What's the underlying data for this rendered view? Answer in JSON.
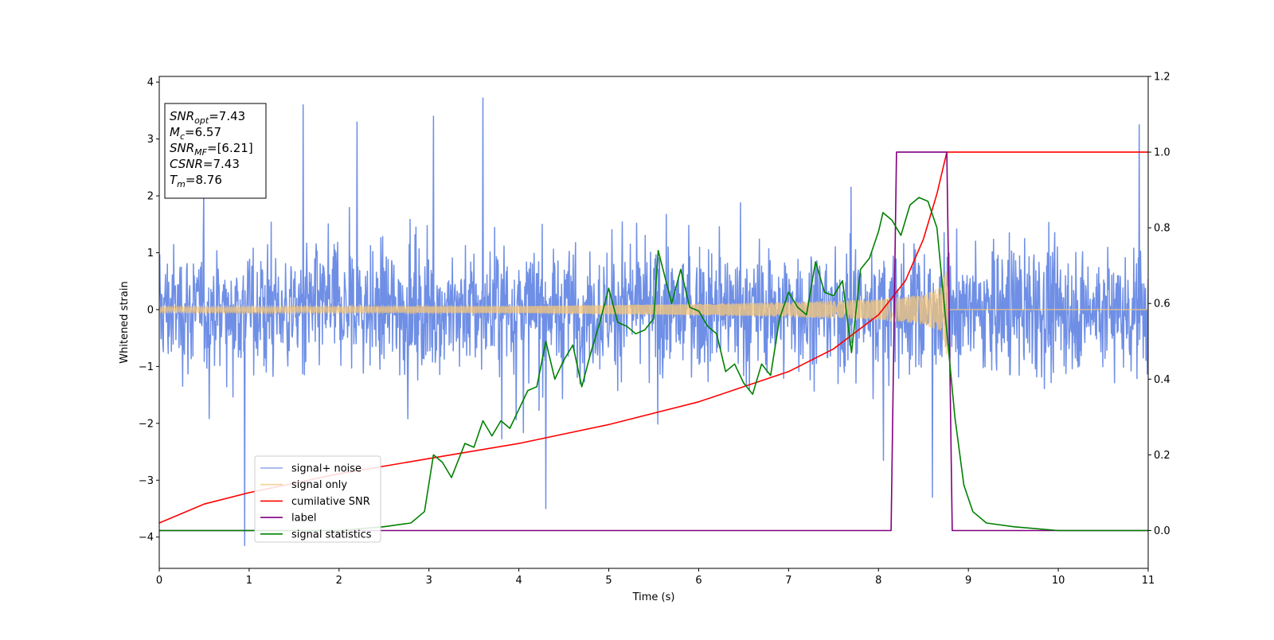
{
  "chart_data": {
    "type": "line",
    "xlabel": "Time (s)",
    "ylabel": "Whitened strain",
    "xlim": [
      0,
      11
    ],
    "ylim_left": [
      -4.55,
      4.1
    ],
    "ylim_right": [
      -0.1,
      1.2
    ],
    "x_ticks": [
      "0",
      "1",
      "2",
      "3",
      "4",
      "5",
      "6",
      "7",
      "8",
      "9",
      "10",
      "11"
    ],
    "y_ticks_left": [
      "−4",
      "−3",
      "−2",
      "−1",
      "0",
      "1",
      "2",
      "3",
      "4"
    ],
    "y_ticks_right": [
      "0.0",
      "0.2",
      "0.4",
      "0.6",
      "0.8",
      "1.0",
      "1.2"
    ],
    "info_box": [
      {
        "var": "SNR",
        "sub": "opt",
        "value": "=7.43"
      },
      {
        "var": "M",
        "sub": "c",
        "value": "=6.57"
      },
      {
        "var": "SNR",
        "sub": "MF",
        "value": "=[6.21]"
      },
      {
        "var": "CSNR",
        "sub": "",
        "value": "=7.43"
      },
      {
        "var": "T",
        "sub": "m",
        "value": "=8.76"
      }
    ],
    "legend_position": "lower-left",
    "series": [
      {
        "name": "signal+ noise",
        "color": "#6f8fe6",
        "axis": "left",
        "kind": "noise",
        "noise_envelope": {
          "typical_range": [
            -1.3,
            1.3
          ],
          "max_peak": 3.72,
          "min_peak": -4.15,
          "x_range": [
            0,
            11
          ]
        },
        "spikes": [
          [
            0.95,
            -4.15
          ],
          [
            1.6,
            3.6
          ],
          [
            3.6,
            3.72
          ],
          [
            4.3,
            -3.5
          ],
          [
            8.6,
            -3.3
          ],
          [
            10.9,
            3.25
          ],
          [
            3.05,
            3.4
          ],
          [
            2.2,
            3.3
          ]
        ]
      },
      {
        "name": "signal only",
        "color": "#f5c779",
        "axis": "left",
        "kind": "chirp",
        "envelope": [
          [
            0,
            0.05
          ],
          [
            4,
            0.06
          ],
          [
            6,
            0.1
          ],
          [
            7,
            0.13
          ],
          [
            8,
            0.18
          ],
          [
            8.5,
            0.26
          ],
          [
            8.7,
            0.4
          ],
          [
            8.76,
            0.8
          ],
          [
            8.78,
            0.0
          ],
          [
            11,
            0.0
          ]
        ]
      },
      {
        "name": "cumilative SNR",
        "color": "#ff0000",
        "axis": "right",
        "points": [
          [
            0,
            0.02
          ],
          [
            0.5,
            0.07
          ],
          [
            1,
            0.1
          ],
          [
            2,
            0.15
          ],
          [
            3,
            0.19
          ],
          [
            4,
            0.23
          ],
          [
            5,
            0.28
          ],
          [
            6,
            0.34
          ],
          [
            7,
            0.42
          ],
          [
            7.5,
            0.48
          ],
          [
            8,
            0.57
          ],
          [
            8.3,
            0.66
          ],
          [
            8.5,
            0.77
          ],
          [
            8.65,
            0.89
          ],
          [
            8.76,
            1.0
          ],
          [
            11,
            1.0
          ]
        ]
      },
      {
        "name": "label",
        "color": "#800080",
        "axis": "right",
        "points": [
          [
            0,
            0.0
          ],
          [
            8.14,
            0.0
          ],
          [
            8.2,
            1.0
          ],
          [
            8.76,
            1.0
          ],
          [
            8.82,
            0.0
          ],
          [
            11,
            0.0
          ]
        ]
      },
      {
        "name": "signal statistics",
        "color": "#008000",
        "axis": "right",
        "points": [
          [
            0,
            0.0
          ],
          [
            1,
            0.0
          ],
          [
            2,
            0.0
          ],
          [
            2.5,
            0.01
          ],
          [
            2.8,
            0.02
          ],
          [
            2.95,
            0.05
          ],
          [
            3.05,
            0.2
          ],
          [
            3.15,
            0.18
          ],
          [
            3.25,
            0.14
          ],
          [
            3.4,
            0.23
          ],
          [
            3.5,
            0.22
          ],
          [
            3.6,
            0.29
          ],
          [
            3.7,
            0.25
          ],
          [
            3.8,
            0.29
          ],
          [
            3.9,
            0.27
          ],
          [
            4.0,
            0.32
          ],
          [
            4.1,
            0.37
          ],
          [
            4.2,
            0.38
          ],
          [
            4.3,
            0.5
          ],
          [
            4.4,
            0.4
          ],
          [
            4.5,
            0.45
          ],
          [
            4.6,
            0.49
          ],
          [
            4.7,
            0.38
          ],
          [
            4.8,
            0.47
          ],
          [
            4.9,
            0.55
          ],
          [
            5.0,
            0.64
          ],
          [
            5.1,
            0.55
          ],
          [
            5.2,
            0.54
          ],
          [
            5.3,
            0.52
          ],
          [
            5.4,
            0.53
          ],
          [
            5.5,
            0.56
          ],
          [
            5.55,
            0.74
          ],
          [
            5.7,
            0.6
          ],
          [
            5.8,
            0.69
          ],
          [
            5.9,
            0.59
          ],
          [
            6.0,
            0.58
          ],
          [
            6.1,
            0.54
          ],
          [
            6.2,
            0.52
          ],
          [
            6.3,
            0.42
          ],
          [
            6.4,
            0.44
          ],
          [
            6.5,
            0.39
          ],
          [
            6.6,
            0.36
          ],
          [
            6.7,
            0.44
          ],
          [
            6.8,
            0.41
          ],
          [
            6.9,
            0.56
          ],
          [
            7.0,
            0.63
          ],
          [
            7.1,
            0.59
          ],
          [
            7.2,
            0.57
          ],
          [
            7.3,
            0.71
          ],
          [
            7.4,
            0.63
          ],
          [
            7.5,
            0.62
          ],
          [
            7.6,
            0.66
          ],
          [
            7.7,
            0.47
          ],
          [
            7.8,
            0.69
          ],
          [
            7.9,
            0.72
          ],
          [
            8.0,
            0.79
          ],
          [
            8.05,
            0.84
          ],
          [
            8.15,
            0.82
          ],
          [
            8.25,
            0.78
          ],
          [
            8.35,
            0.86
          ],
          [
            8.45,
            0.88
          ],
          [
            8.55,
            0.87
          ],
          [
            8.65,
            0.8
          ],
          [
            8.75,
            0.55
          ],
          [
            8.85,
            0.3
          ],
          [
            8.95,
            0.12
          ],
          [
            9.05,
            0.05
          ],
          [
            9.2,
            0.02
          ],
          [
            9.5,
            0.01
          ],
          [
            10,
            0.0
          ],
          [
            11,
            0.0
          ]
        ]
      }
    ]
  }
}
